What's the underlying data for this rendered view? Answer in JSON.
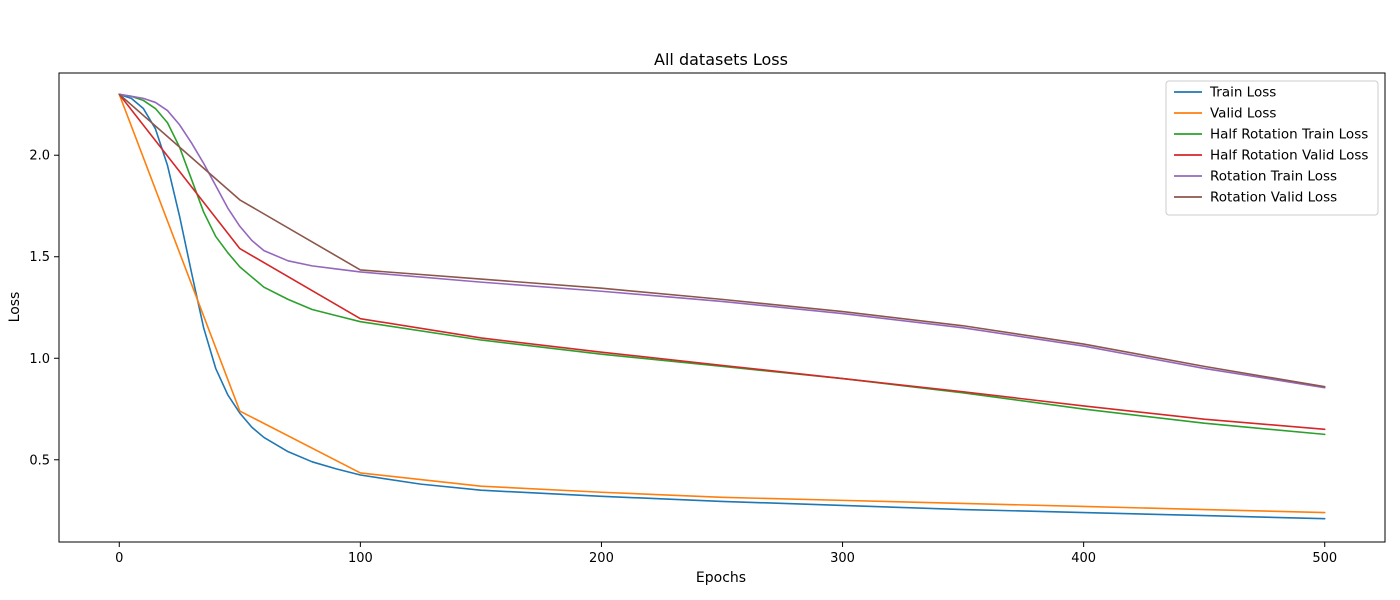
{
  "chart_data": {
    "type": "line",
    "title": "All datasets Loss",
    "xlabel": "Epochs",
    "ylabel": "Loss",
    "xlim": [
      -25,
      525
    ],
    "ylim": [
      0.095,
      2.405
    ],
    "xticks": [
      0,
      100,
      200,
      300,
      400,
      500
    ],
    "yticks": [
      0.5,
      1.0,
      1.5,
      2.0
    ],
    "ytick_labels": [
      "0.5",
      "1.0",
      "1.5",
      "2.0"
    ],
    "grid": false,
    "legend_position": "top-right",
    "series": [
      {
        "name": "Train Loss",
        "color": "#1f77b4",
        "x": [
          0,
          5,
          10,
          15,
          20,
          25,
          30,
          35,
          40,
          45,
          50,
          55,
          60,
          70,
          80,
          90,
          100,
          125,
          150,
          200,
          250,
          300,
          350,
          400,
          450,
          500
        ],
        "y": [
          2.3,
          2.28,
          2.23,
          2.13,
          1.95,
          1.7,
          1.42,
          1.15,
          0.95,
          0.82,
          0.73,
          0.66,
          0.61,
          0.54,
          0.49,
          0.455,
          0.425,
          0.38,
          0.35,
          0.32,
          0.295,
          0.275,
          0.255,
          0.24,
          0.225,
          0.21
        ]
      },
      {
        "name": "Valid Loss",
        "color": "#ff7f0e",
        "x": [
          0,
          50,
          100,
          150,
          200,
          250,
          300,
          350,
          400,
          450,
          500
        ],
        "y": [
          2.3,
          0.74,
          0.435,
          0.37,
          0.34,
          0.315,
          0.3,
          0.285,
          0.27,
          0.255,
          0.24
        ]
      },
      {
        "name": "Half Rotation Train Loss",
        "color": "#2ca02c",
        "x": [
          0,
          5,
          10,
          15,
          20,
          25,
          30,
          35,
          40,
          45,
          50,
          55,
          60,
          70,
          80,
          90,
          100,
          150,
          200,
          250,
          300,
          350,
          400,
          450,
          500
        ],
        "y": [
          2.3,
          2.29,
          2.27,
          2.23,
          2.16,
          2.04,
          1.88,
          1.72,
          1.6,
          1.52,
          1.45,
          1.4,
          1.35,
          1.29,
          1.24,
          1.21,
          1.18,
          1.09,
          1.02,
          0.96,
          0.9,
          0.83,
          0.75,
          0.68,
          0.625
        ]
      },
      {
        "name": "Half Rotation Valid Loss",
        "color": "#d62728",
        "x": [
          0,
          50,
          100,
          150,
          200,
          250,
          300,
          350,
          400,
          450,
          500
        ],
        "y": [
          2.3,
          1.54,
          1.195,
          1.1,
          1.03,
          0.965,
          0.9,
          0.835,
          0.765,
          0.7,
          0.65
        ]
      },
      {
        "name": "Rotation Train Loss",
        "color": "#9467bd",
        "x": [
          0,
          5,
          10,
          15,
          20,
          25,
          30,
          35,
          40,
          45,
          50,
          55,
          60,
          70,
          80,
          90,
          100,
          150,
          200,
          250,
          300,
          350,
          400,
          450,
          500
        ],
        "y": [
          2.3,
          2.29,
          2.28,
          2.26,
          2.22,
          2.15,
          2.06,
          1.96,
          1.85,
          1.74,
          1.65,
          1.58,
          1.53,
          1.48,
          1.455,
          1.44,
          1.425,
          1.375,
          1.33,
          1.28,
          1.22,
          1.15,
          1.06,
          0.95,
          0.855
        ]
      },
      {
        "name": "Rotation Valid Loss",
        "color": "#8c564b",
        "x": [
          0,
          50,
          100,
          150,
          200,
          250,
          300,
          350,
          400,
          450,
          500
        ],
        "y": [
          2.3,
          1.78,
          1.435,
          1.39,
          1.345,
          1.29,
          1.23,
          1.16,
          1.07,
          0.96,
          0.86
        ]
      }
    ]
  }
}
